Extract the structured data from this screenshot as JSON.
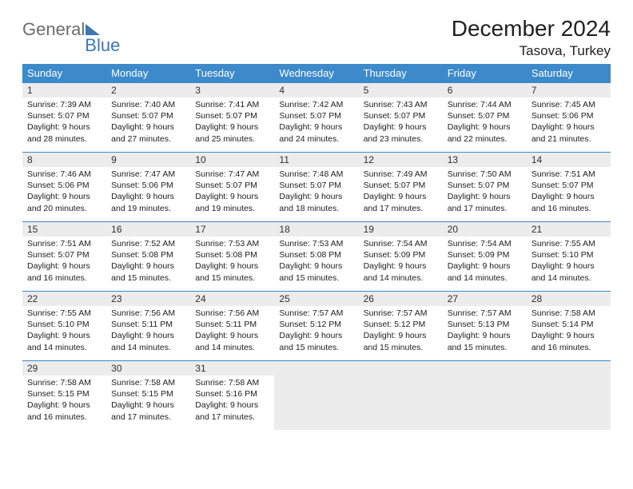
{
  "logo": {
    "general": "General",
    "blue": "Blue"
  },
  "title": "December 2024",
  "location": "Tasova, Turkey",
  "colors": {
    "header_bg": "#3c8ac9",
    "header_text": "#ffffff",
    "daynum_bg": "#ececec",
    "border": "#3c8ac9",
    "text": "#202020",
    "logo_gray": "#6b6b6b",
    "logo_blue": "#3b78b5"
  },
  "daynames": [
    "Sunday",
    "Monday",
    "Tuesday",
    "Wednesday",
    "Thursday",
    "Friday",
    "Saturday"
  ],
  "days": [
    {
      "n": 1,
      "sr": "7:39 AM",
      "ss": "5:07 PM",
      "dl": "9 hours and 28 minutes."
    },
    {
      "n": 2,
      "sr": "7:40 AM",
      "ss": "5:07 PM",
      "dl": "9 hours and 27 minutes."
    },
    {
      "n": 3,
      "sr": "7:41 AM",
      "ss": "5:07 PM",
      "dl": "9 hours and 25 minutes."
    },
    {
      "n": 4,
      "sr": "7:42 AM",
      "ss": "5:07 PM",
      "dl": "9 hours and 24 minutes."
    },
    {
      "n": 5,
      "sr": "7:43 AM",
      "ss": "5:07 PM",
      "dl": "9 hours and 23 minutes."
    },
    {
      "n": 6,
      "sr": "7:44 AM",
      "ss": "5:07 PM",
      "dl": "9 hours and 22 minutes."
    },
    {
      "n": 7,
      "sr": "7:45 AM",
      "ss": "5:06 PM",
      "dl": "9 hours and 21 minutes."
    },
    {
      "n": 8,
      "sr": "7:46 AM",
      "ss": "5:06 PM",
      "dl": "9 hours and 20 minutes."
    },
    {
      "n": 9,
      "sr": "7:47 AM",
      "ss": "5:06 PM",
      "dl": "9 hours and 19 minutes."
    },
    {
      "n": 10,
      "sr": "7:47 AM",
      "ss": "5:07 PM",
      "dl": "9 hours and 19 minutes."
    },
    {
      "n": 11,
      "sr": "7:48 AM",
      "ss": "5:07 PM",
      "dl": "9 hours and 18 minutes."
    },
    {
      "n": 12,
      "sr": "7:49 AM",
      "ss": "5:07 PM",
      "dl": "9 hours and 17 minutes."
    },
    {
      "n": 13,
      "sr": "7:50 AM",
      "ss": "5:07 PM",
      "dl": "9 hours and 17 minutes."
    },
    {
      "n": 14,
      "sr": "7:51 AM",
      "ss": "5:07 PM",
      "dl": "9 hours and 16 minutes."
    },
    {
      "n": 15,
      "sr": "7:51 AM",
      "ss": "5:07 PM",
      "dl": "9 hours and 16 minutes."
    },
    {
      "n": 16,
      "sr": "7:52 AM",
      "ss": "5:08 PM",
      "dl": "9 hours and 15 minutes."
    },
    {
      "n": 17,
      "sr": "7:53 AM",
      "ss": "5:08 PM",
      "dl": "9 hours and 15 minutes."
    },
    {
      "n": 18,
      "sr": "7:53 AM",
      "ss": "5:08 PM",
      "dl": "9 hours and 15 minutes."
    },
    {
      "n": 19,
      "sr": "7:54 AM",
      "ss": "5:09 PM",
      "dl": "9 hours and 14 minutes."
    },
    {
      "n": 20,
      "sr": "7:54 AM",
      "ss": "5:09 PM",
      "dl": "9 hours and 14 minutes."
    },
    {
      "n": 21,
      "sr": "7:55 AM",
      "ss": "5:10 PM",
      "dl": "9 hours and 14 minutes."
    },
    {
      "n": 22,
      "sr": "7:55 AM",
      "ss": "5:10 PM",
      "dl": "9 hours and 14 minutes."
    },
    {
      "n": 23,
      "sr": "7:56 AM",
      "ss": "5:11 PM",
      "dl": "9 hours and 14 minutes."
    },
    {
      "n": 24,
      "sr": "7:56 AM",
      "ss": "5:11 PM",
      "dl": "9 hours and 14 minutes."
    },
    {
      "n": 25,
      "sr": "7:57 AM",
      "ss": "5:12 PM",
      "dl": "9 hours and 15 minutes."
    },
    {
      "n": 26,
      "sr": "7:57 AM",
      "ss": "5:12 PM",
      "dl": "9 hours and 15 minutes."
    },
    {
      "n": 27,
      "sr": "7:57 AM",
      "ss": "5:13 PM",
      "dl": "9 hours and 15 minutes."
    },
    {
      "n": 28,
      "sr": "7:58 AM",
      "ss": "5:14 PM",
      "dl": "9 hours and 16 minutes."
    },
    {
      "n": 29,
      "sr": "7:58 AM",
      "ss": "5:15 PM",
      "dl": "9 hours and 16 minutes."
    },
    {
      "n": 30,
      "sr": "7:58 AM",
      "ss": "5:15 PM",
      "dl": "9 hours and 17 minutes."
    },
    {
      "n": 31,
      "sr": "7:58 AM",
      "ss": "5:16 PM",
      "dl": "9 hours and 17 minutes."
    }
  ],
  "labels": {
    "sunrise": "Sunrise:",
    "sunset": "Sunset:",
    "daylight": "Daylight:"
  },
  "layout": {
    "start_weekday": 0,
    "trailing_empty": 4
  }
}
